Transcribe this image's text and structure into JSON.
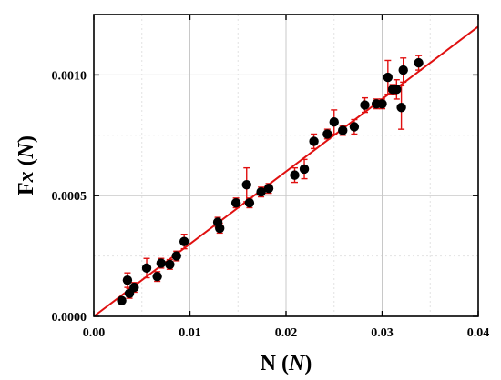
{
  "chart_data": {
    "type": "scatter",
    "xlabel": "N (N)",
    "xlabel_main": "N (",
    "xlabel_unit": "N",
    "xlabel_close": ")",
    "ylabel_main": "F",
    "ylabel_italic": "x",
    "ylabel_paren_open": " (",
    "ylabel_unit": "N",
    "ylabel_paren_close": ")",
    "xlim": [
      0.0,
      0.04
    ],
    "ylim": [
      0.0,
      0.00125
    ],
    "xticks": [
      0.0,
      0.01,
      0.02,
      0.03,
      0.04
    ],
    "xtick_labels": [
      "0.00",
      "0.01",
      "0.02",
      "0.03",
      "0.04"
    ],
    "yticks": [
      0.0,
      0.0005,
      0.001
    ],
    "ytick_labels": [
      "0.0000",
      "0.0005",
      "0.0010"
    ],
    "grid": true,
    "colors": {
      "points": "#000000",
      "errorbars": "#e01010",
      "fit": "#e01010"
    },
    "series": [
      {
        "points": [
          {
            "x": 0.0029,
            "y": 6.5e-05,
            "err": 1e-05
          },
          {
            "x": 0.0035,
            "y": 0.00015,
            "err": 3e-05
          },
          {
            "x": 0.0037,
            "y": 9.5e-05,
            "err": 2e-05
          },
          {
            "x": 0.0042,
            "y": 0.00012,
            "err": 2e-05
          },
          {
            "x": 0.0055,
            "y": 0.0002,
            "err": 4e-05
          },
          {
            "x": 0.0066,
            "y": 0.000165,
            "err": 2e-05
          },
          {
            "x": 0.007,
            "y": 0.00022,
            "err": 2e-05
          },
          {
            "x": 0.0079,
            "y": 0.000215,
            "err": 2e-05
          },
          {
            "x": 0.0086,
            "y": 0.00025,
            "err": 2e-05
          },
          {
            "x": 0.0094,
            "y": 0.00031,
            "err": 3e-05
          },
          {
            "x": 0.0129,
            "y": 0.00039,
            "err": 2e-05
          },
          {
            "x": 0.0131,
            "y": 0.000365,
            "err": 2e-05
          },
          {
            "x": 0.0148,
            "y": 0.00047,
            "err": 2e-05
          },
          {
            "x": 0.0159,
            "y": 0.000545,
            "err": 7e-05
          },
          {
            "x": 0.0162,
            "y": 0.00047,
            "err": 2e-05
          },
          {
            "x": 0.0174,
            "y": 0.000515,
            "err": 2e-05
          },
          {
            "x": 0.0182,
            "y": 0.00053,
            "err": 2e-05
          },
          {
            "x": 0.0209,
            "y": 0.000585,
            "err": 3e-05
          },
          {
            "x": 0.0219,
            "y": 0.00061,
            "err": 4e-05
          },
          {
            "x": 0.0229,
            "y": 0.000725,
            "err": 3e-05
          },
          {
            "x": 0.0243,
            "y": 0.000755,
            "err": 2e-05
          },
          {
            "x": 0.025,
            "y": 0.000805,
            "err": 5e-05
          },
          {
            "x": 0.0259,
            "y": 0.00077,
            "err": 2e-05
          },
          {
            "x": 0.0271,
            "y": 0.000785,
            "err": 3e-05
          },
          {
            "x": 0.0282,
            "y": 0.000875,
            "err": 3e-05
          },
          {
            "x": 0.0294,
            "y": 0.00088,
            "err": 2e-05
          },
          {
            "x": 0.03,
            "y": 0.00088,
            "err": 2e-05
          },
          {
            "x": 0.0306,
            "y": 0.00099,
            "err": 7e-05
          },
          {
            "x": 0.0311,
            "y": 0.00094,
            "err": 2e-05
          },
          {
            "x": 0.0315,
            "y": 0.00094,
            "err": 4e-05
          },
          {
            "x": 0.032,
            "y": 0.000865,
            "err": 9e-05
          },
          {
            "x": 0.0322,
            "y": 0.00102,
            "err": 5e-05
          },
          {
            "x": 0.0338,
            "y": 0.00105,
            "err": 3e-05
          }
        ]
      }
    ],
    "fit_line": {
      "x": [
        0.0,
        0.04
      ],
      "y": [
        0.0,
        0.0012
      ]
    }
  }
}
